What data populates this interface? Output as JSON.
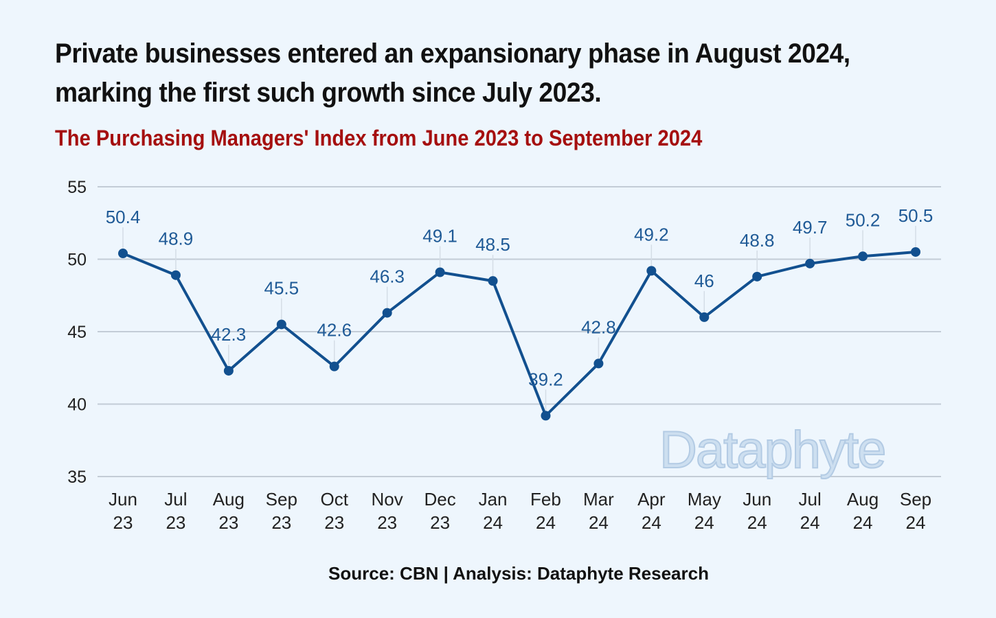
{
  "title": "Private businesses entered an expansionary phase in August 2024, marking the first such growth since July 2023.",
  "chart_data": {
    "type": "line",
    "title": "The Purchasing Managers' Index from June 2023 to September 2024",
    "categories": [
      [
        "Jun",
        "23"
      ],
      [
        "Jul",
        "23"
      ],
      [
        "Aug",
        "23"
      ],
      [
        "Sep",
        "23"
      ],
      [
        "Oct",
        "23"
      ],
      [
        "Nov",
        "23"
      ],
      [
        "Dec",
        "23"
      ],
      [
        "Jan",
        "24"
      ],
      [
        "Feb",
        "24"
      ],
      [
        "Mar",
        "24"
      ],
      [
        "Apr",
        "24"
      ],
      [
        "May",
        "24"
      ],
      [
        "Jun",
        "24"
      ],
      [
        "Jul",
        "24"
      ],
      [
        "Aug",
        "24"
      ],
      [
        "Sep",
        "24"
      ]
    ],
    "values": [
      50.4,
      48.9,
      42.3,
      45.5,
      42.6,
      46.3,
      49.1,
      48.5,
      39.2,
      42.8,
      49.2,
      46,
      48.8,
      49.7,
      50.2,
      50.5
    ],
    "data_labels": [
      "50.4",
      "48.9",
      "42.3",
      "45.5",
      "42.6",
      "46.3",
      "49.1",
      "48.5",
      "39.2",
      "42.8",
      "49.2",
      "46",
      "48.8",
      "49.7",
      "50.2",
      "50.5"
    ],
    "ylim": [
      35,
      55
    ],
    "yticks": [
      35,
      40,
      45,
      50,
      55
    ],
    "xlabel": "",
    "ylabel": "",
    "grid": "horizontal",
    "line_color": "#12508f",
    "label_color": "#1f5a96"
  },
  "source": "Source: CBN | Analysis: Dataphyte Research",
  "watermark": "Dataphyte"
}
